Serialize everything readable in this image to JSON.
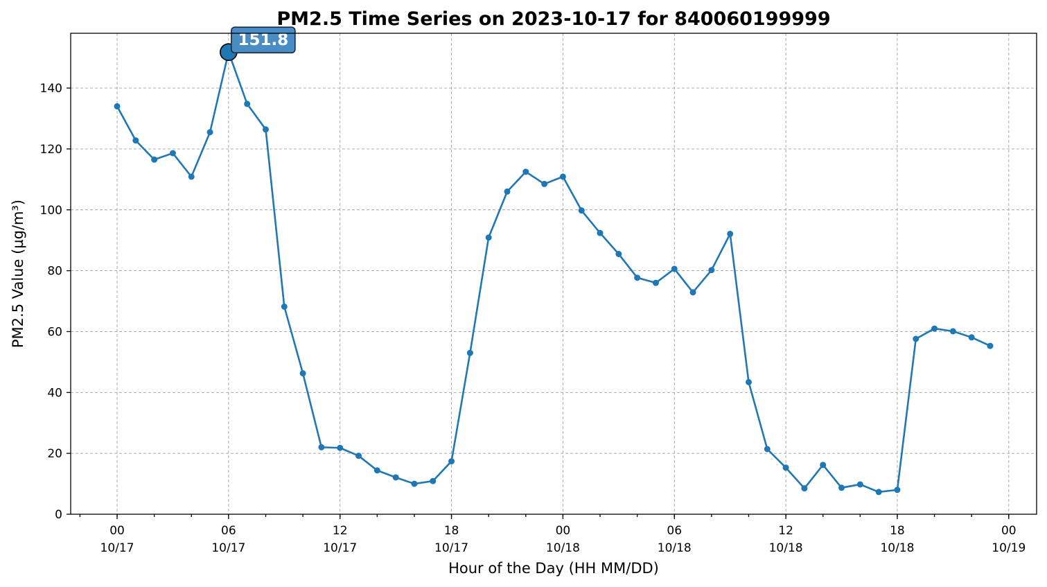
{
  "colors": {
    "series": "#1f77b4",
    "peak_box": "#4a8cc4",
    "peak_box_edge": "#1a2a3a"
  },
  "chart_data": {
    "type": "line",
    "title": "PM2.5 Time Series on 2023-10-17 for 840060199999",
    "xlabel": "Hour of the Day (HH MM/DD)",
    "ylabel": "PM2.5 Value (µg/m³)",
    "ylim": [
      0,
      158
    ],
    "xlim": [
      "2023-10-16 21:30",
      "2023-10-19 01:30"
    ],
    "grid": true,
    "y_ticks": [
      0,
      20,
      40,
      60,
      80,
      100,
      120,
      140
    ],
    "x_ticks": [
      {
        "x": "2023-10-17 00:00",
        "hour": "00",
        "date": "10/17"
      },
      {
        "x": "2023-10-17 06:00",
        "hour": "06",
        "date": "10/17"
      },
      {
        "x": "2023-10-17 12:00",
        "hour": "12",
        "date": "10/17"
      },
      {
        "x": "2023-10-17 18:00",
        "hour": "18",
        "date": "10/17"
      },
      {
        "x": "2023-10-18 00:00",
        "hour": "00",
        "date": "10/18"
      },
      {
        "x": "2023-10-18 06:00",
        "hour": "06",
        "date": "10/18"
      },
      {
        "x": "2023-10-18 12:00",
        "hour": "12",
        "date": "10/18"
      },
      {
        "x": "2023-10-18 18:00",
        "hour": "18",
        "date": "10/18"
      },
      {
        "x": "2023-10-19 00:00",
        "hour": "00",
        "date": "10/19"
      }
    ],
    "series": [
      {
        "x": [
          "2023-10-17 00:00",
          "2023-10-17 01:00",
          "2023-10-17 02:00",
          "2023-10-17 03:00",
          "2023-10-17 04:00",
          "2023-10-17 05:00",
          "2023-10-17 06:00",
          "2023-10-17 07:00",
          "2023-10-17 08:00",
          "2023-10-17 09:00",
          "2023-10-17 10:00",
          "2023-10-17 11:00",
          "2023-10-17 12:00",
          "2023-10-17 13:00",
          "2023-10-17 14:00",
          "2023-10-17 15:00",
          "2023-10-17 16:00",
          "2023-10-17 17:00",
          "2023-10-17 18:00",
          "2023-10-17 19:00",
          "2023-10-17 20:00",
          "2023-10-17 21:00",
          "2023-10-17 22:00",
          "2023-10-17 23:00",
          "2023-10-18 00:00",
          "2023-10-18 01:00",
          "2023-10-18 02:00",
          "2023-10-18 03:00",
          "2023-10-18 04:00",
          "2023-10-18 05:00",
          "2023-10-18 06:00",
          "2023-10-18 07:00",
          "2023-10-18 08:00",
          "2023-10-18 09:00",
          "2023-10-18 10:00",
          "2023-10-18 11:00",
          "2023-10-18 12:00",
          "2023-10-18 13:00",
          "2023-10-18 14:00",
          "2023-10-18 15:00",
          "2023-10-18 16:00",
          "2023-10-18 17:00",
          "2023-10-18 18:00",
          "2023-10-18 19:00",
          "2023-10-18 20:00",
          "2023-10-18 21:00",
          "2023-10-18 22:00",
          "2023-10-18 23:00"
        ],
        "values": [
          134.0,
          122.8,
          116.5,
          118.6,
          110.9,
          125.5,
          151.8,
          134.8,
          126.4,
          68.2,
          46.3,
          22.0,
          21.8,
          19.2,
          14.4,
          12.1,
          10.0,
          10.9,
          17.4,
          53.0,
          90.9,
          106.0,
          112.5,
          108.5,
          110.9,
          99.8,
          92.4,
          85.5,
          77.7,
          76.0,
          80.6,
          72.9,
          80.2,
          92.1,
          43.4,
          21.4,
          15.3,
          8.5,
          16.2,
          8.7,
          9.8,
          7.3,
          8.0,
          57.6,
          61.0,
          60.1,
          58.1,
          55.3
        ]
      }
    ],
    "annotations": [
      {
        "x": "2023-10-17 06:00",
        "y": 151.8,
        "text": "151.8"
      }
    ]
  }
}
